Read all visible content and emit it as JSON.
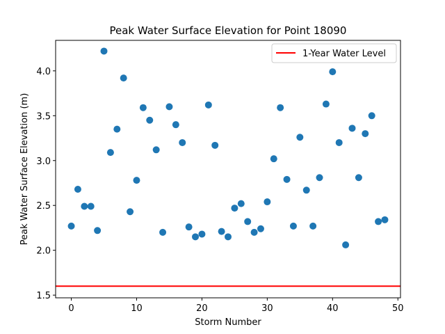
{
  "chart_data": {
    "type": "scatter",
    "title": "Peak Water Surface Elevation for Point 18090",
    "xlabel": "Storm Number",
    "ylabel": "Peak Water Surface Elevation (m)",
    "xlim": [
      -2.4,
      50.4
    ],
    "ylim": [
      1.47,
      4.34
    ],
    "xticks": [
      0,
      10,
      20,
      30,
      40,
      50
    ],
    "yticks": [
      1.5,
      2.0,
      2.5,
      3.0,
      3.5,
      4.0
    ],
    "xtick_labels": [
      "0",
      "10",
      "20",
      "30",
      "40",
      "50"
    ],
    "ytick_labels": [
      "1.5",
      "2.0",
      "2.5",
      "3.0",
      "3.5",
      "4.0"
    ],
    "grid": false,
    "legend_position": "top-right",
    "point_color": "#1f77b4",
    "series": [
      {
        "x": [
          0,
          1,
          2,
          3,
          4,
          5,
          6,
          7,
          8,
          9,
          10,
          11,
          12,
          13,
          14,
          15,
          16,
          17,
          18,
          19,
          20,
          21,
          22,
          23,
          24,
          25,
          26,
          27,
          28,
          29,
          30,
          31,
          32,
          33,
          34,
          35,
          36,
          37,
          38,
          39,
          40,
          41,
          42,
          43,
          44,
          45,
          46,
          47,
          48
        ],
        "y": [
          2.27,
          2.68,
          2.49,
          2.49,
          2.22,
          4.22,
          3.09,
          3.35,
          3.92,
          2.43,
          2.78,
          3.59,
          3.45,
          3.12,
          2.2,
          3.6,
          3.4,
          3.2,
          2.26,
          2.15,
          2.18,
          3.62,
          3.17,
          2.21,
          2.15,
          2.47,
          2.52,
          2.32,
          2.2,
          2.24,
          2.54,
          3.02,
          3.59,
          2.79,
          2.27,
          3.26,
          2.67,
          2.27,
          2.81,
          3.63,
          3.99,
          3.2,
          2.06,
          3.36,
          2.81,
          3.3,
          3.5,
          2.32,
          2.34
        ]
      }
    ],
    "reference_line": {
      "name": "1-Year Water Level",
      "y": 1.6,
      "color": "#ff0000"
    }
  }
}
